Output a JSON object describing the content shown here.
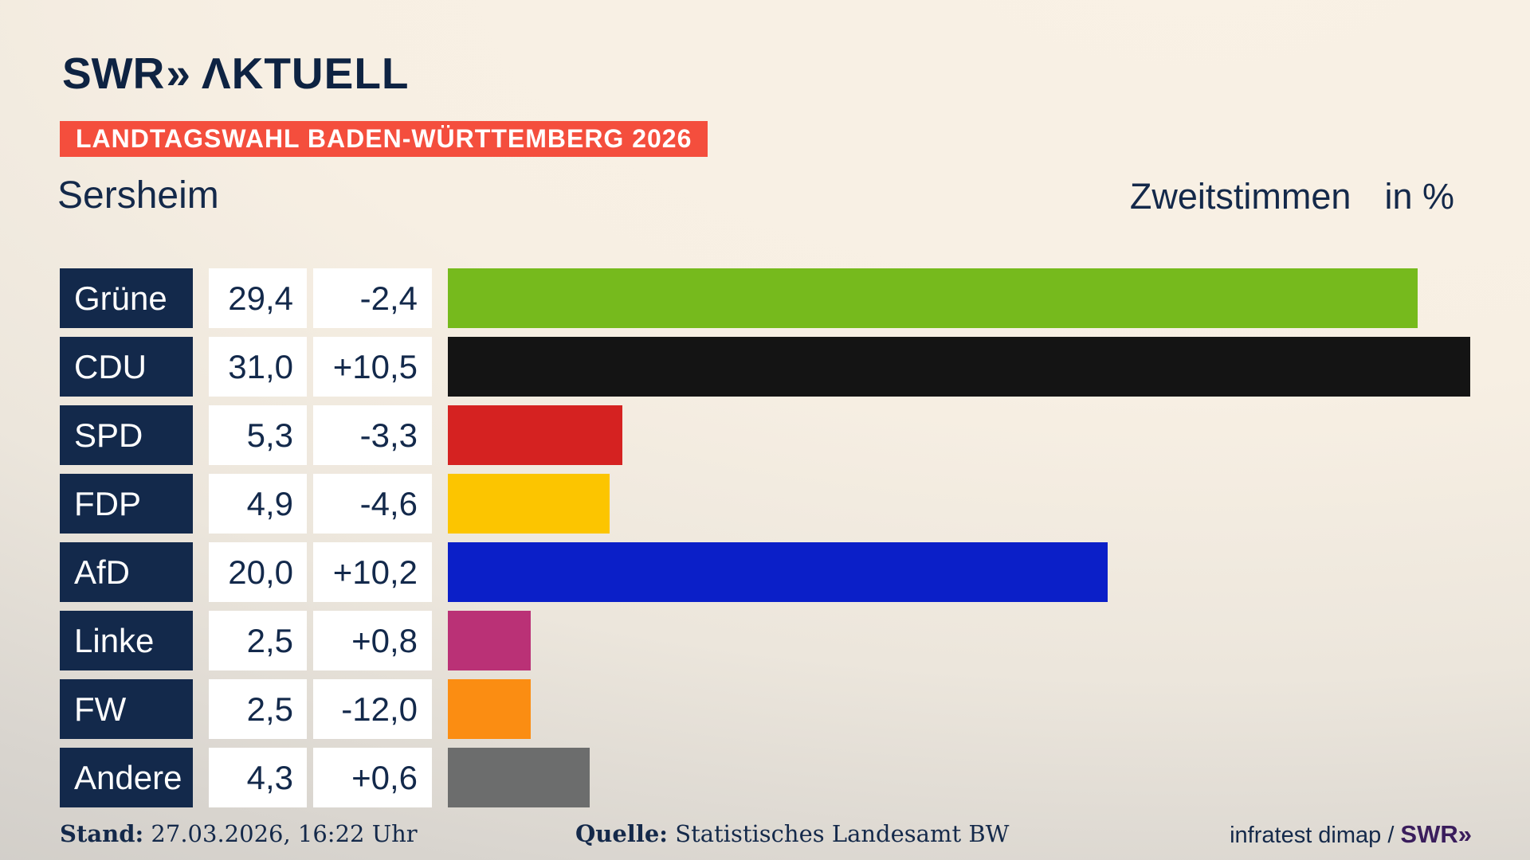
{
  "header": {
    "logo": {
      "swr": "SWR",
      "chevrons": "»",
      "aktuell": "ΛKTUELL"
    },
    "badge": "LANDTAGSWAHL BADEN-WÜRTTEMBERG 2026",
    "municipality": "Sersheim"
  },
  "chart_data": {
    "type": "bar",
    "orientation": "horizontal",
    "title": "Zweitstimmen",
    "unit": "in %",
    "categories": [
      "Grüne",
      "CDU",
      "SPD",
      "FDP",
      "AfD",
      "Linke",
      "FW",
      "Andere"
    ],
    "values": [
      29.4,
      31.0,
      5.3,
      4.9,
      20.0,
      2.5,
      2.5,
      4.3
    ],
    "changes": [
      -2.4,
      10.5,
      -3.3,
      -4.6,
      10.2,
      0.8,
      -12.0,
      0.6
    ],
    "value_labels": [
      "29,4",
      "31,0",
      "5,3",
      "4,9",
      "20,0",
      "2,5",
      "2,5",
      "4,3"
    ],
    "change_labels": [
      "-2,4",
      "+10,5",
      "-3,3",
      "-4,6",
      "+10,2",
      "+0,8",
      "-12,0",
      "+0,6"
    ],
    "bar_colors": [
      "#76ba1d",
      "#141414",
      "#d52221",
      "#fcc500",
      "#0b1fc8",
      "#ba3176",
      "#fb8d12",
      "#6c6d6d"
    ],
    "xlim": [
      0,
      32.8
    ],
    "legend": "none",
    "grid": "off"
  },
  "footer": {
    "stand_label": "Stand:",
    "stand_value": "27.03.2026, 16:22 Uhr",
    "quelle_label": "Quelle:",
    "quelle_value": "Statistisches Landesamt BW",
    "credit_text": "infratest dimap /",
    "credit_brand": "SWR»"
  },
  "colors": {
    "navy": "#13294b",
    "badge_red": "#f44e3d",
    "background_light": "#f9f1e5",
    "background_dark": "#ccc9c4",
    "credit_purple": "#3a1d5c",
    "box_white": "#ffffff"
  }
}
